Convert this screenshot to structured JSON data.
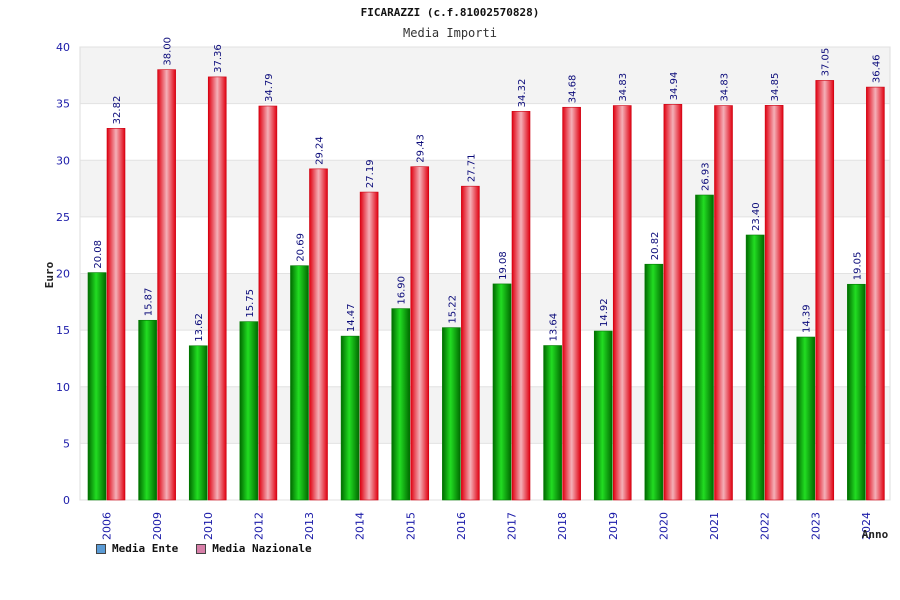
{
  "chart_data": {
    "type": "bar",
    "title": "FICARAZZI (c.f.81002570828)",
    "subtitle": "Media Importi",
    "xlabel": "Anno",
    "ylabel": "Euro",
    "ylim": [
      0,
      40
    ],
    "yticks": [
      0,
      5,
      10,
      15,
      20,
      25,
      30,
      35,
      40
    ],
    "categories": [
      "2006",
      "2009",
      "2010",
      "2012",
      "2013",
      "2014",
      "2015",
      "2016",
      "2017",
      "2018",
      "2019",
      "2020",
      "2021",
      "2022",
      "2023",
      "2024"
    ],
    "series": [
      {
        "name": "Media Ente",
        "color": "#00b000",
        "legend_color": "#5b9bd5",
        "values": [
          20.08,
          15.87,
          13.62,
          15.75,
          20.69,
          14.47,
          16.9,
          15.22,
          19.08,
          13.64,
          14.92,
          20.82,
          26.93,
          23.4,
          14.39,
          19.05
        ],
        "labels": [
          "20.08",
          "15.87",
          "13.62",
          "15.75",
          "20.69",
          "14.47",
          "16.90",
          "15.22",
          "19.08",
          "13.64",
          "14.92",
          "20.82",
          "26.93",
          "23.40",
          "14.39",
          "19.05"
        ]
      },
      {
        "name": "Media Nazionale",
        "color": "#ee1c25",
        "legend_color": "#d77fa8",
        "values": [
          32.82,
          38.0,
          37.36,
          34.79,
          29.24,
          27.19,
          29.43,
          27.71,
          34.32,
          34.68,
          34.83,
          34.94,
          34.83,
          34.85,
          37.05,
          36.46
        ],
        "labels": [
          "32.82",
          "38.00",
          "37.36",
          "34.79",
          "29.24",
          "27.19",
          "29.43",
          "27.71",
          "34.32",
          "34.68",
          "34.83",
          "34.94",
          "34.83",
          "34.85",
          "37.05",
          "36.46"
        ]
      }
    ],
    "grid": true,
    "legend_position": "bottom-left"
  }
}
